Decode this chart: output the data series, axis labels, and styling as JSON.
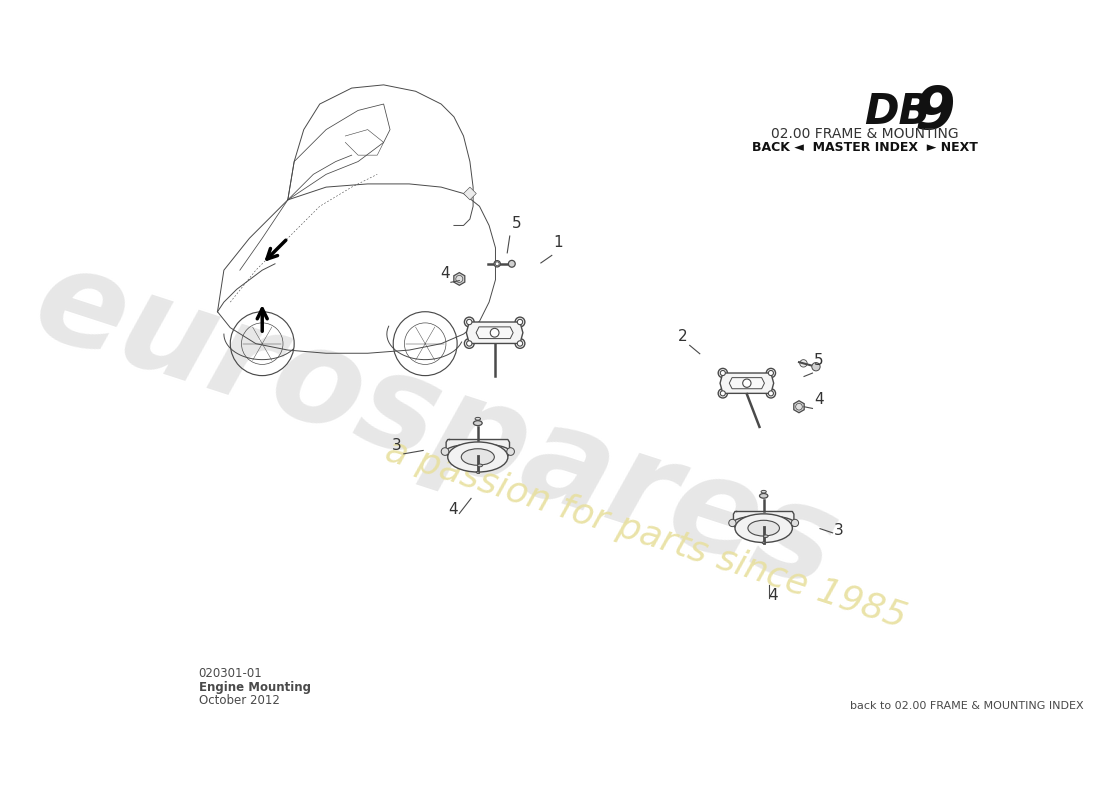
{
  "title_db": "DB",
  "title_9": "9",
  "title_section": "02.00 FRAME & MOUNTING",
  "title_nav": "BACK ◄  MASTER INDEX  ► NEXT",
  "part_number": "020301-01",
  "part_name": "Engine Mounting",
  "date": "October 2012",
  "footer_right": "back to 02.00 FRAME & MOUNTING INDEX",
  "watermark_line1": "eurospares",
  "watermark_line2": "a passion for parts since 1985",
  "bg_color": "#ffffff",
  "line_color": "#4a4a4a",
  "part_fill": "#f5f5f5",
  "part_fill2": "#ececec",
  "shadow_fill": "#e0e0e0",
  "wm_color1": "#d8d8d8",
  "wm_color2": "#e8e0a0",
  "label_color": "#333333"
}
